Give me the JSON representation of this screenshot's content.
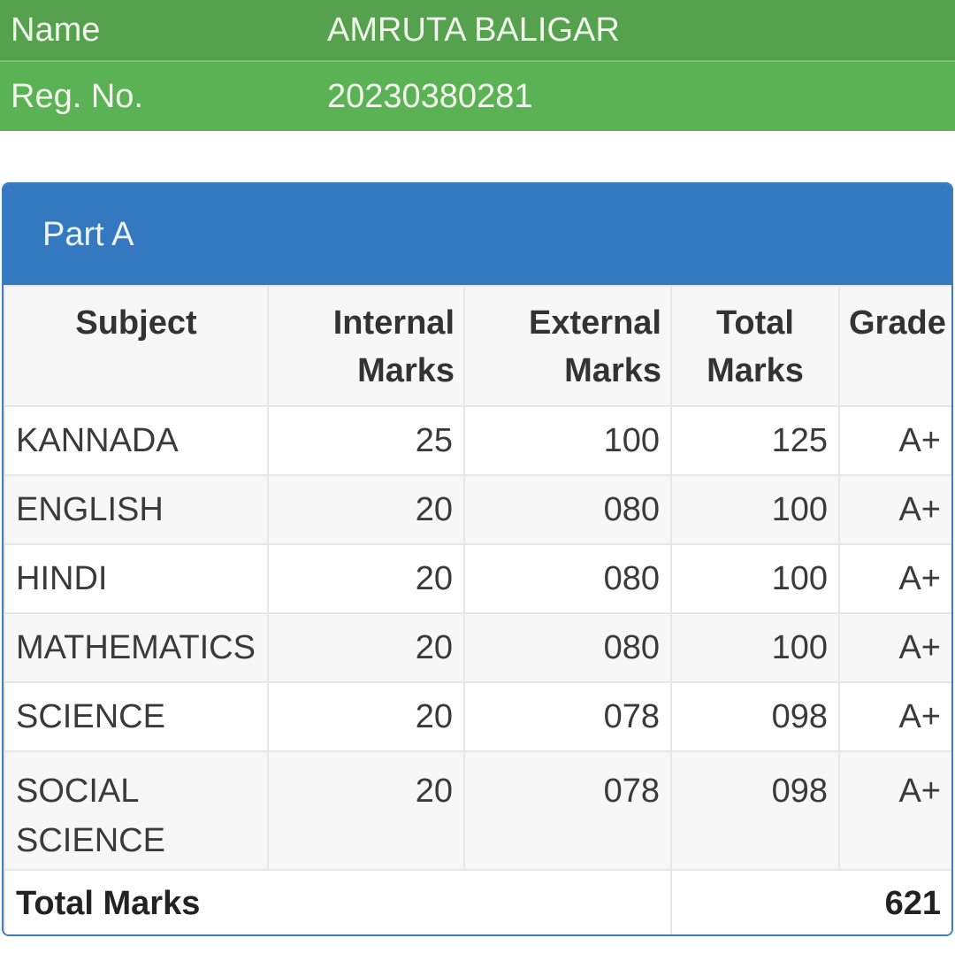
{
  "student": {
    "name_label": "Name",
    "name_value": "AMRUTA BALIGAR",
    "reg_label": "Reg. No.",
    "reg_value": "20230380281"
  },
  "panel": {
    "title": "Part A"
  },
  "table": {
    "headers": {
      "subject": "Subject",
      "internal_1": "Internal",
      "internal_2": "Marks",
      "external_1": "External",
      "external_2": "Marks",
      "total_1": "Total",
      "total_2": "Marks",
      "grade": "Grade"
    },
    "rows": [
      {
        "subject": "KANNADA",
        "internal": "25",
        "external": "100",
        "total": "125",
        "grade": "A+"
      },
      {
        "subject": "ENGLISH",
        "internal": "20",
        "external": "080",
        "total": "100",
        "grade": "A+"
      },
      {
        "subject": "HINDI",
        "internal": "20",
        "external": "080",
        "total": "100",
        "grade": "A+"
      },
      {
        "subject": "MATHEMATICS",
        "internal": "20",
        "external": "080",
        "total": "100",
        "grade": "A+"
      },
      {
        "subject": "SCIENCE",
        "internal": "20",
        "external": "078",
        "total": "098",
        "grade": "A+"
      },
      {
        "subject_1": "SOCIAL",
        "subject_2": "SCIENCE",
        "internal": "20",
        "external": "078",
        "total": "098",
        "grade": "A+"
      }
    ],
    "total_label": "Total Marks",
    "total_value": "621"
  },
  "colors": {
    "name_bar": "#56a14d",
    "reg_bar": "#5bb254",
    "panel_heading": "#3479bf"
  }
}
